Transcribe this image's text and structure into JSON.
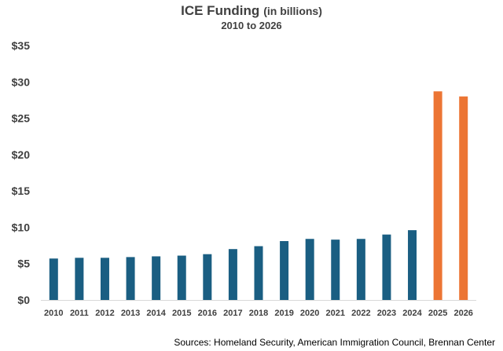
{
  "chart_data": {
    "type": "bar",
    "title": "ICE Funding",
    "title_suffix": "(in billions)",
    "subtitle": "2010 to 2026",
    "categories": [
      "2010",
      "2011",
      "2012",
      "2013",
      "2014",
      "2015",
      "2016",
      "2017",
      "2018",
      "2019",
      "2020",
      "2021",
      "2022",
      "2023",
      "2024",
      "2025",
      "2026"
    ],
    "values": [
      5.7,
      5.8,
      5.8,
      5.9,
      6.0,
      6.1,
      6.3,
      7.0,
      7.4,
      8.1,
      8.4,
      8.3,
      8.4,
      9.0,
      9.6,
      28.7,
      28.0
    ],
    "colors": [
      "#1a5e82",
      "#1a5e82",
      "#1a5e82",
      "#1a5e82",
      "#1a5e82",
      "#1a5e82",
      "#1a5e82",
      "#1a5e82",
      "#1a5e82",
      "#1a5e82",
      "#1a5e82",
      "#1a5e82",
      "#1a5e82",
      "#1a5e82",
      "#1a5e82",
      "#ec7534",
      "#ec7534"
    ],
    "ylim": [
      0,
      35
    ],
    "yticks": [
      0,
      5,
      10,
      15,
      20,
      25,
      30,
      35
    ],
    "ytick_labels": [
      "$0",
      "$5",
      "$10",
      "$15",
      "$20",
      "$25",
      "$30",
      "$35"
    ],
    "xlabel": "",
    "ylabel": "",
    "grid": false,
    "legend": "none",
    "source": "Sources: Homeland Security, American Immigration Council, Brennan Center"
  }
}
